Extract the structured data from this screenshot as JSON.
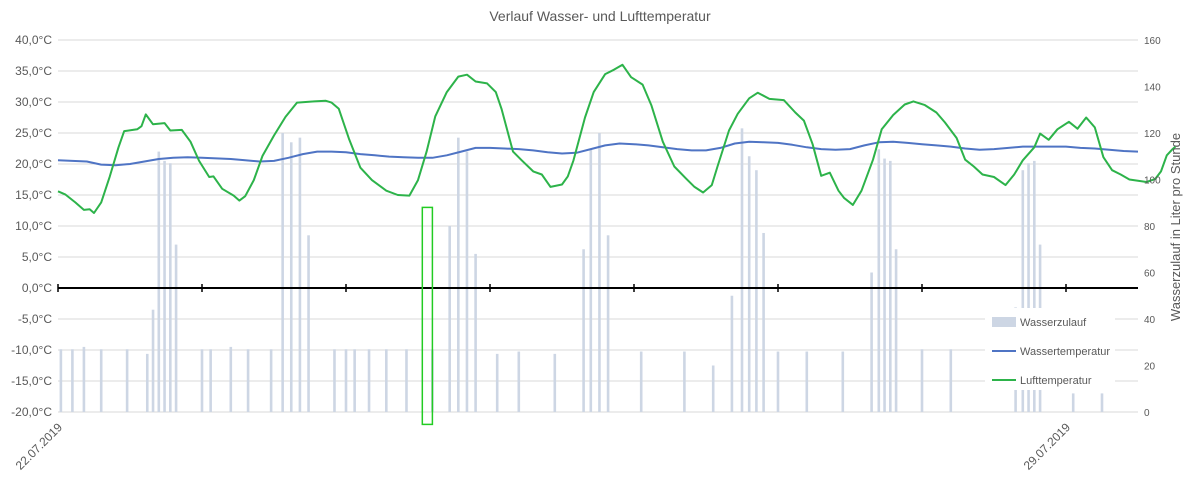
{
  "chart_data": {
    "type": "line",
    "title": "Verlauf Wasser- und Lufttemperatur",
    "y_label": "",
    "y2_label": "Wasserzulauf in Liter pro Stunde",
    "y_ticks": [
      "40,0°C",
      "35,0°C",
      "30,0°C",
      "25,0°C",
      "20,0°C",
      "15,0°C",
      "10,0°C",
      "5,0°C",
      "0,0°C",
      "-5,0°C",
      "-10,0°C",
      "-15,0°C",
      "-20,0°C"
    ],
    "y2_ticks": [
      "160",
      "140",
      "120",
      "100",
      "80",
      "60",
      "40",
      "20",
      "0"
    ],
    "ylim": [
      -20,
      40
    ],
    "y2lim": [
      0,
      160
    ],
    "xlim_days": [
      0,
      7.5
    ],
    "x_tick_labels": [
      {
        "day": 0,
        "label": "22.07.2019"
      },
      {
        "day": 7,
        "label": "29.07.2019"
      }
    ],
    "legend_position": "right",
    "grid": "horizontal",
    "colors": {
      "air": "#2db34a",
      "water": "#4f74c4",
      "flow": "#cdd6e4",
      "highlight": "#22cc22",
      "axis": "#000000",
      "grid": "#d9d9d9"
    },
    "series": [
      {
        "name": "Wasserzulauf",
        "kind": "bar",
        "axis": "y2",
        "points": [
          [
            0.02,
            27
          ],
          [
            0.1,
            27
          ],
          [
            0.18,
            28
          ],
          [
            0.3,
            27
          ],
          [
            0.48,
            27
          ],
          [
            0.62,
            25
          ],
          [
            0.66,
            44
          ],
          [
            0.7,
            112
          ],
          [
            0.74,
            108
          ],
          [
            0.78,
            107
          ],
          [
            0.82,
            72
          ],
          [
            1.0,
            27
          ],
          [
            1.06,
            27
          ],
          [
            1.2,
            28
          ],
          [
            1.32,
            27
          ],
          [
            1.48,
            27
          ],
          [
            1.56,
            120
          ],
          [
            1.62,
            116
          ],
          [
            1.68,
            118
          ],
          [
            1.74,
            76
          ],
          [
            1.92,
            27
          ],
          [
            2.0,
            27
          ],
          [
            2.06,
            27
          ],
          [
            2.16,
            27
          ],
          [
            2.28,
            27
          ],
          [
            2.42,
            27
          ],
          [
            2.6,
            27
          ],
          [
            2.72,
            80
          ],
          [
            2.78,
            118
          ],
          [
            2.84,
            112
          ],
          [
            2.9,
            68
          ],
          [
            3.05,
            25
          ],
          [
            3.2,
            26
          ],
          [
            3.45,
            25
          ],
          [
            3.65,
            70
          ],
          [
            3.7,
            113
          ],
          [
            3.76,
            120
          ],
          [
            3.82,
            76
          ],
          [
            4.05,
            26
          ],
          [
            4.35,
            26
          ],
          [
            4.55,
            20
          ],
          [
            4.68,
            50
          ],
          [
            4.75,
            122
          ],
          [
            4.8,
            110
          ],
          [
            4.85,
            104
          ],
          [
            4.9,
            77
          ],
          [
            5.0,
            26
          ],
          [
            5.2,
            26
          ],
          [
            5.45,
            26
          ],
          [
            5.65,
            60
          ],
          [
            5.7,
            113
          ],
          [
            5.74,
            109
          ],
          [
            5.78,
            108
          ],
          [
            5.82,
            70
          ],
          [
            6.0,
            27
          ],
          [
            6.2,
            27
          ],
          [
            6.65,
            45
          ],
          [
            6.7,
            104
          ],
          [
            6.74,
            107
          ],
          [
            6.78,
            108
          ],
          [
            6.82,
            72
          ],
          [
            7.05,
            8
          ],
          [
            7.25,
            8
          ]
        ]
      },
      {
        "name": "Wassertemperatur",
        "kind": "line",
        "axis": "y1",
        "points": [
          [
            0,
            20.6
          ],
          [
            0.2,
            20.4
          ],
          [
            0.3,
            19.9
          ],
          [
            0.4,
            19.8
          ],
          [
            0.5,
            20.0
          ],
          [
            0.6,
            20.4
          ],
          [
            0.7,
            20.8
          ],
          [
            0.8,
            21.0
          ],
          [
            0.9,
            21.1
          ],
          [
            1.0,
            21.0
          ],
          [
            1.1,
            20.9
          ],
          [
            1.2,
            20.8
          ],
          [
            1.3,
            20.6
          ],
          [
            1.4,
            20.4
          ],
          [
            1.5,
            20.5
          ],
          [
            1.6,
            21.0
          ],
          [
            1.7,
            21.6
          ],
          [
            1.8,
            22.0
          ],
          [
            1.9,
            22.0
          ],
          [
            2.0,
            21.9
          ],
          [
            2.1,
            21.6
          ],
          [
            2.2,
            21.4
          ],
          [
            2.3,
            21.2
          ],
          [
            2.4,
            21.1
          ],
          [
            2.5,
            21.0
          ],
          [
            2.6,
            21.0
          ],
          [
            2.7,
            21.4
          ],
          [
            2.8,
            22.0
          ],
          [
            2.9,
            22.6
          ],
          [
            3.0,
            22.6
          ],
          [
            3.1,
            22.5
          ],
          [
            3.2,
            22.4
          ],
          [
            3.3,
            22.2
          ],
          [
            3.4,
            21.9
          ],
          [
            3.5,
            21.7
          ],
          [
            3.6,
            21.8
          ],
          [
            3.7,
            22.4
          ],
          [
            3.8,
            23.0
          ],
          [
            3.9,
            23.3
          ],
          [
            4.0,
            23.2
          ],
          [
            4.1,
            23.0
          ],
          [
            4.2,
            22.7
          ],
          [
            4.3,
            22.4
          ],
          [
            4.4,
            22.2
          ],
          [
            4.5,
            22.2
          ],
          [
            4.6,
            22.6
          ],
          [
            4.7,
            23.3
          ],
          [
            4.8,
            23.6
          ],
          [
            4.9,
            23.5
          ],
          [
            5.0,
            23.4
          ],
          [
            5.1,
            23.1
          ],
          [
            5.2,
            22.7
          ],
          [
            5.3,
            22.4
          ],
          [
            5.4,
            22.3
          ],
          [
            5.5,
            22.4
          ],
          [
            5.6,
            23.0
          ],
          [
            5.7,
            23.5
          ],
          [
            5.8,
            23.6
          ],
          [
            5.9,
            23.4
          ],
          [
            6.0,
            23.2
          ],
          [
            6.1,
            23.0
          ],
          [
            6.2,
            22.8
          ],
          [
            6.3,
            22.5
          ],
          [
            6.4,
            22.3
          ],
          [
            6.5,
            22.4
          ],
          [
            6.6,
            22.6
          ],
          [
            6.7,
            22.8
          ],
          [
            6.8,
            22.8
          ],
          [
            6.9,
            22.8
          ],
          [
            7.0,
            22.8
          ],
          [
            7.1,
            22.6
          ],
          [
            7.2,
            22.5
          ],
          [
            7.3,
            22.3
          ],
          [
            7.4,
            22.1
          ],
          [
            7.5,
            22.0
          ]
        ]
      },
      {
        "name": "Lufttemperatur",
        "kind": "line",
        "axis": "y1",
        "points": [
          [
            0.0,
            15.6
          ],
          [
            0.05,
            15.1
          ],
          [
            0.12,
            13.8
          ],
          [
            0.18,
            12.6
          ],
          [
            0.22,
            12.7
          ],
          [
            0.25,
            12.1
          ],
          [
            0.3,
            13.8
          ],
          [
            0.36,
            18.0
          ],
          [
            0.42,
            22.7
          ],
          [
            0.46,
            25.3
          ],
          [
            0.52,
            25.5
          ],
          [
            0.55,
            25.6
          ],
          [
            0.58,
            26.1
          ],
          [
            0.61,
            28.0
          ],
          [
            0.66,
            26.4
          ],
          [
            0.74,
            26.6
          ],
          [
            0.78,
            25.4
          ],
          [
            0.86,
            25.5
          ],
          [
            0.92,
            23.6
          ],
          [
            0.98,
            20.5
          ],
          [
            1.05,
            17.9
          ],
          [
            1.08,
            18.0
          ],
          [
            1.14,
            16.0
          ],
          [
            1.22,
            14.9
          ],
          [
            1.26,
            14.1
          ],
          [
            1.3,
            14.8
          ],
          [
            1.36,
            17.4
          ],
          [
            1.42,
            21.3
          ],
          [
            1.5,
            24.6
          ],
          [
            1.58,
            27.6
          ],
          [
            1.66,
            29.9
          ],
          [
            1.78,
            30.1
          ],
          [
            1.86,
            30.2
          ],
          [
            1.9,
            29.9
          ],
          [
            1.95,
            28.9
          ],
          [
            2.02,
            24.1
          ],
          [
            2.1,
            19.4
          ],
          [
            2.18,
            17.4
          ],
          [
            2.28,
            15.7
          ],
          [
            2.36,
            15.0
          ],
          [
            2.44,
            14.9
          ],
          [
            2.5,
            17.4
          ],
          [
            2.56,
            22.0
          ],
          [
            2.62,
            27.7
          ],
          [
            2.7,
            31.6
          ],
          [
            2.78,
            34.1
          ],
          [
            2.84,
            34.4
          ],
          [
            2.9,
            33.3
          ],
          [
            2.98,
            33.0
          ],
          [
            3.04,
            31.6
          ],
          [
            3.08,
            28.9
          ],
          [
            3.16,
            22.0
          ],
          [
            3.22,
            20.6
          ],
          [
            3.3,
            18.8
          ],
          [
            3.36,
            18.3
          ],
          [
            3.42,
            16.3
          ],
          [
            3.5,
            16.7
          ],
          [
            3.54,
            18.0
          ],
          [
            3.58,
            20.6
          ],
          [
            3.66,
            27.5
          ],
          [
            3.72,
            31.6
          ],
          [
            3.8,
            34.5
          ],
          [
            3.86,
            35.2
          ],
          [
            3.92,
            36.0
          ],
          [
            3.98,
            34.0
          ],
          [
            4.06,
            32.8
          ],
          [
            4.12,
            29.5
          ],
          [
            4.2,
            23.6
          ],
          [
            4.28,
            19.6
          ],
          [
            4.36,
            17.7
          ],
          [
            4.42,
            16.3
          ],
          [
            4.48,
            15.4
          ],
          [
            4.54,
            16.6
          ],
          [
            4.58,
            19.6
          ],
          [
            4.66,
            25.4
          ],
          [
            4.72,
            28.1
          ],
          [
            4.8,
            30.6
          ],
          [
            4.86,
            31.5
          ],
          [
            4.94,
            30.5
          ],
          [
            5.04,
            30.3
          ],
          [
            5.12,
            28.3
          ],
          [
            5.18,
            27.0
          ],
          [
            5.24,
            23.2
          ],
          [
            5.3,
            18.1
          ],
          [
            5.36,
            18.6
          ],
          [
            5.42,
            15.7
          ],
          [
            5.46,
            14.5
          ],
          [
            5.52,
            13.4
          ],
          [
            5.58,
            15.7
          ],
          [
            5.66,
            20.7
          ],
          [
            5.72,
            25.6
          ],
          [
            5.8,
            27.9
          ],
          [
            5.88,
            29.6
          ],
          [
            5.94,
            30.1
          ],
          [
            6.02,
            29.5
          ],
          [
            6.1,
            28.3
          ],
          [
            6.16,
            26.7
          ],
          [
            6.24,
            24.2
          ],
          [
            6.3,
            20.7
          ],
          [
            6.36,
            19.6
          ],
          [
            6.42,
            18.3
          ],
          [
            6.5,
            17.9
          ],
          [
            6.58,
            16.6
          ],
          [
            6.64,
            18.3
          ],
          [
            6.7,
            20.6
          ],
          [
            6.78,
            22.7
          ],
          [
            6.82,
            24.9
          ],
          [
            6.88,
            23.9
          ],
          [
            6.94,
            25.6
          ],
          [
            7.02,
            26.8
          ],
          [
            7.08,
            25.7
          ],
          [
            7.14,
            27.5
          ],
          [
            7.2,
            25.9
          ],
          [
            7.26,
            21.1
          ],
          [
            7.32,
            19.0
          ],
          [
            7.38,
            18.3
          ],
          [
            7.44,
            17.5
          ],
          [
            7.5,
            17.3
          ],
          [
            7.56,
            17.1
          ],
          [
            7.62,
            17.6
          ],
          [
            7.66,
            18.8
          ],
          [
            7.7,
            21.4
          ],
          [
            7.74,
            22.4
          ],
          [
            7.76,
            22.8
          ]
        ]
      }
    ],
    "annotations": [
      {
        "kind": "highlight-rect",
        "day_from": 2.53,
        "day_to": 2.6,
        "y_from": -22.0,
        "y_to": 13.0
      }
    ]
  }
}
